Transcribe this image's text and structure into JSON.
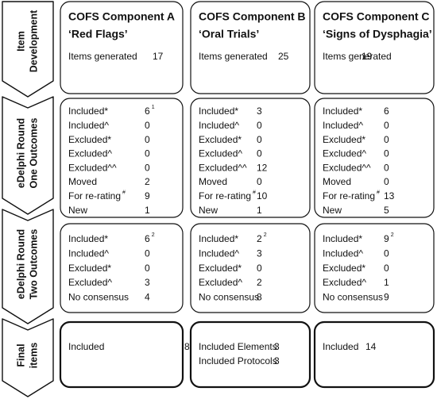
{
  "stages": [
    [
      "Item",
      "Development"
    ],
    [
      "eDelphi Round",
      "One Outcomes"
    ],
    [
      "eDelphi Round",
      "Two Outcomes"
    ],
    [
      "Final",
      "items"
    ]
  ],
  "columns": [
    {
      "title": "COFS Component A",
      "subtitle": "‘Red Flags’",
      "blocks": [
        [
          {
            "label": "Items generated",
            "value": "17"
          }
        ],
        [
          {
            "label": "Included*",
            "value": "6",
            "sup": "1"
          },
          {
            "label": "Included^",
            "value": "0"
          },
          {
            "label": "Excluded*",
            "value": "0"
          },
          {
            "label": "Excluded^",
            "value": "0"
          },
          {
            "label": "Excluded^^",
            "value": "0"
          },
          {
            "label": "Moved",
            "value": "2"
          },
          {
            "label": "For re-rating",
            "label_sup": "#",
            "value": "9"
          },
          {
            "label": "New",
            "value": "1"
          }
        ],
        [
          {
            "label": "Included*",
            "value": "6",
            "sup": "2"
          },
          {
            "label": "Included^",
            "value": "0"
          },
          {
            "label": "Excluded*",
            "value": "0"
          },
          {
            "label": "Excluded^",
            "value": "3"
          },
          {
            "label": "No consensus",
            "value": "4"
          }
        ],
        [
          {
            "label": "Included",
            "value": "8"
          }
        ]
      ]
    },
    {
      "title": "COFS Component B",
      "subtitle": "‘Oral Trials’",
      "blocks": [
        [
          {
            "label": "Items generated",
            "value": "25"
          }
        ],
        [
          {
            "label": "Included*",
            "value": "3"
          },
          {
            "label": "Included^",
            "value": "0"
          },
          {
            "label": "Excluded*",
            "value": "0"
          },
          {
            "label": "Excluded^",
            "value": "0"
          },
          {
            "label": "Excluded^^",
            "value": "12"
          },
          {
            "label": "Moved",
            "value": "0"
          },
          {
            "label": "For re-rating",
            "label_sup": "#",
            "value": "10"
          },
          {
            "label": "New",
            "value": "1"
          }
        ],
        [
          {
            "label": "Included*",
            "value": "2",
            "sup": "2"
          },
          {
            "label": "Included^",
            "value": "3"
          },
          {
            "label": "Excluded*",
            "value": "0"
          },
          {
            "label": "Excluded^",
            "value": "2"
          },
          {
            "label": "No consensus",
            "value": "8"
          }
        ],
        [
          {
            "label": "Included Elements",
            "value": "3"
          },
          {
            "label": "Included Protocols",
            "value": "3"
          }
        ]
      ]
    },
    {
      "title": "COFS Component C",
      "subtitle": "‘Signs of Dysphagia’",
      "blocks": [
        [
          {
            "label": "Items generated",
            "value": "19"
          }
        ],
        [
          {
            "label": "Included*",
            "value": "6"
          },
          {
            "label": "Included^",
            "value": "0"
          },
          {
            "label": "Excluded*",
            "value": "0"
          },
          {
            "label": "Excluded^",
            "value": "0"
          },
          {
            "label": "Excluded^^",
            "value": "0"
          },
          {
            "label": "Moved",
            "value": "0"
          },
          {
            "label": "For re-rating",
            "label_sup": "#",
            "value": "13"
          },
          {
            "label": "New",
            "value": "5"
          }
        ],
        [
          {
            "label": "Included*",
            "value": "9",
            "sup": "2"
          },
          {
            "label": "Included^",
            "value": "0"
          },
          {
            "label": "Excluded*",
            "value": "0"
          },
          {
            "label": "Excluded^",
            "value": "1"
          },
          {
            "label": "No consensus",
            "value": "9"
          }
        ],
        [
          {
            "label": "Included",
            "value": "14"
          }
        ]
      ]
    }
  ]
}
